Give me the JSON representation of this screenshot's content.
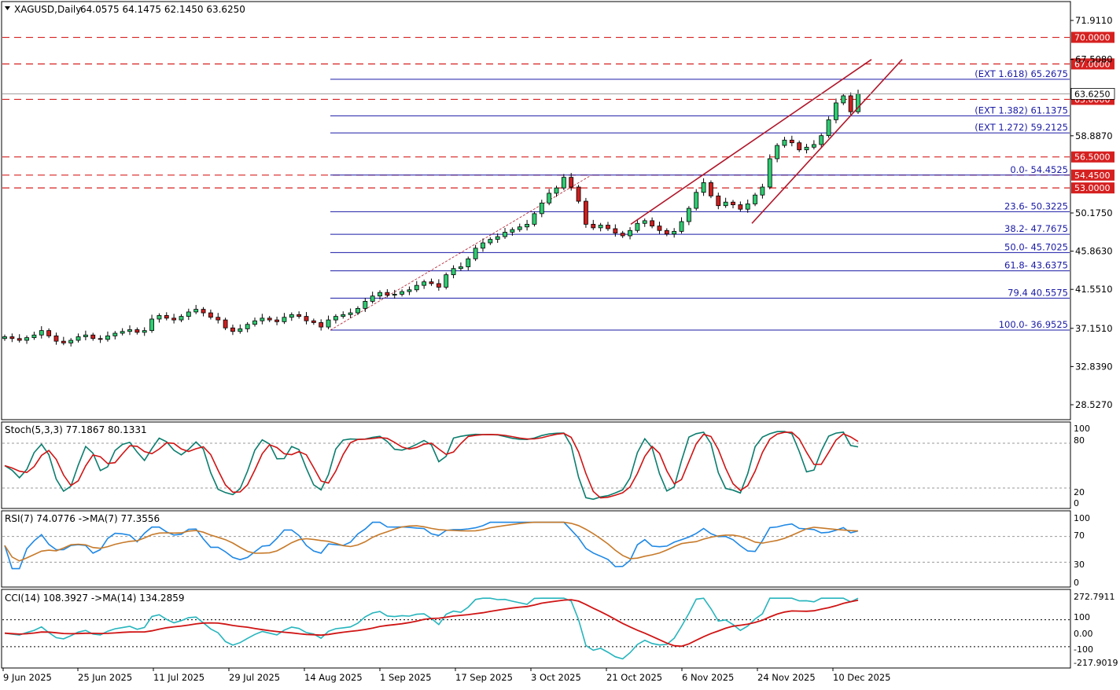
{
  "header": {
    "symbol": "XAGUSD,Daily",
    "ohlc": "64.0575 64.1475 62.1450 63.6250"
  },
  "colors": {
    "bull": "#2ecc71",
    "bear": "#cc1f1f",
    "dashed_level": "#d62020",
    "fib_line": "#1a1aa6",
    "channel": "#b0162a",
    "stoch_main": "#0b7d6e",
    "stoch_signal": "#d01414",
    "rsi_main": "#1e88e5",
    "rsi_ma": "#c77a2a",
    "cci_main": "#26b5bd",
    "cci_ma": "#d01414"
  },
  "price_axis": {
    "ticks": [
      "71.9110",
      "67.5080",
      "58.8870",
      "50.1750",
      "45.8630",
      "41.5510",
      "37.1510",
      "32.8390",
      "28.5270"
    ],
    "current_price_label": "63.6250"
  },
  "horizontal_levels": [
    {
      "value": 70.0,
      "label": "70.0000"
    },
    {
      "value": 67.0,
      "label": "67.0000"
    },
    {
      "value": 63.0,
      "label": "63.0000"
    },
    {
      "value": 56.5,
      "label": "56.5000"
    },
    {
      "value": 54.45,
      "label": "54.4500"
    },
    {
      "value": 53.0,
      "label": "53.0000"
    }
  ],
  "fib_levels": [
    {
      "value": 65.2675,
      "label": "(EXT 1.618)  65.2675"
    },
    {
      "value": 61.1375,
      "label": "(EXT 1.382)  61.1375"
    },
    {
      "value": 59.2125,
      "label": "(EXT 1.272)  59.2125"
    },
    {
      "value": 54.4525,
      "label": "0.0- 54.4525"
    },
    {
      "value": 50.3225,
      "label": "23.6- 50.3225"
    },
    {
      "value": 47.7675,
      "label": "38.2- 47.7675"
    },
    {
      "value": 45.7025,
      "label": "50.0- 45.7025"
    },
    {
      "value": 43.6375,
      "label": "61.8- 43.6375"
    },
    {
      "value": 40.5575,
      "label": "79.4  40.5575"
    },
    {
      "value": 36.9525,
      "label": "100.0- 36.9525"
    }
  ],
  "x_axis_labels": [
    "9 Jun 2025",
    "25 Jun 2025",
    "11 Jul 2025",
    "29 Jul 2025",
    "14 Aug 2025",
    "1 Sep 2025",
    "17 Sep 2025",
    "3 Oct 2025",
    "21 Oct 2025",
    "6 Nov 2025",
    "24 Nov 2025",
    "10 Dec 2025"
  ],
  "indicators": {
    "stoch": {
      "title": "Stoch(5,3,3) 77.1867 80.1331",
      "ticks": [
        "100",
        "80",
        "20",
        "0"
      ]
    },
    "rsi": {
      "title": "RSI(7) 74.0776  ->MA(7) 77.3556",
      "ticks": [
        "100",
        "70",
        "30",
        "0"
      ]
    },
    "cci": {
      "title": "CCI(14) 108.3927  ->MA(14) 134.2859",
      "ticks": [
        "272.7911",
        "100",
        "0.00",
        "-100",
        "-217.9019"
      ]
    }
  },
  "chart_data": {
    "type": "candlestick",
    "symbol": "XAGUSD",
    "timeframe": "Daily",
    "ylim": [
      27.0,
      73.5
    ],
    "closes": [
      36.2,
      36.0,
      35.8,
      36.1,
      36.4,
      36.9,
      36.3,
      35.7,
      35.5,
      35.8,
      36.2,
      36.4,
      36.0,
      35.9,
      36.3,
      36.6,
      36.8,
      37.0,
      36.7,
      36.9,
      38.2,
      38.6,
      38.3,
      38.1,
      38.5,
      39.0,
      39.3,
      38.9,
      38.4,
      38.1,
      37.2,
      36.8,
      37.1,
      37.6,
      38.0,
      38.3,
      38.1,
      37.9,
      38.4,
      38.7,
      38.5,
      38.0,
      37.8,
      37.3,
      38.1,
      38.5,
      38.7,
      38.9,
      39.4,
      40.2,
      40.8,
      41.2,
      40.9,
      41.0,
      41.3,
      41.5,
      42.0,
      42.4,
      42.2,
      41.8,
      43.2,
      43.9,
      44.1,
      45.0,
      46.2,
      46.8,
      47.2,
      47.5,
      48.0,
      48.3,
      48.6,
      48.9,
      50.1,
      51.3,
      52.4,
      53.0,
      54.2,
      53.1,
      51.5,
      48.9,
      48.5,
      48.8,
      48.4,
      47.9,
      47.6,
      48.2,
      49.0,
      49.3,
      48.7,
      48.2,
      47.8,
      48.1,
      49.2,
      50.7,
      52.5,
      53.6,
      52.1,
      51.0,
      51.4,
      51.1,
      50.6,
      51.2,
      52.2,
      53.1,
      56.3,
      57.8,
      58.4,
      58.1,
      57.3,
      57.6,
      57.9,
      58.9,
      60.7,
      62.6,
      63.4,
      61.6,
      63.6
    ]
  }
}
